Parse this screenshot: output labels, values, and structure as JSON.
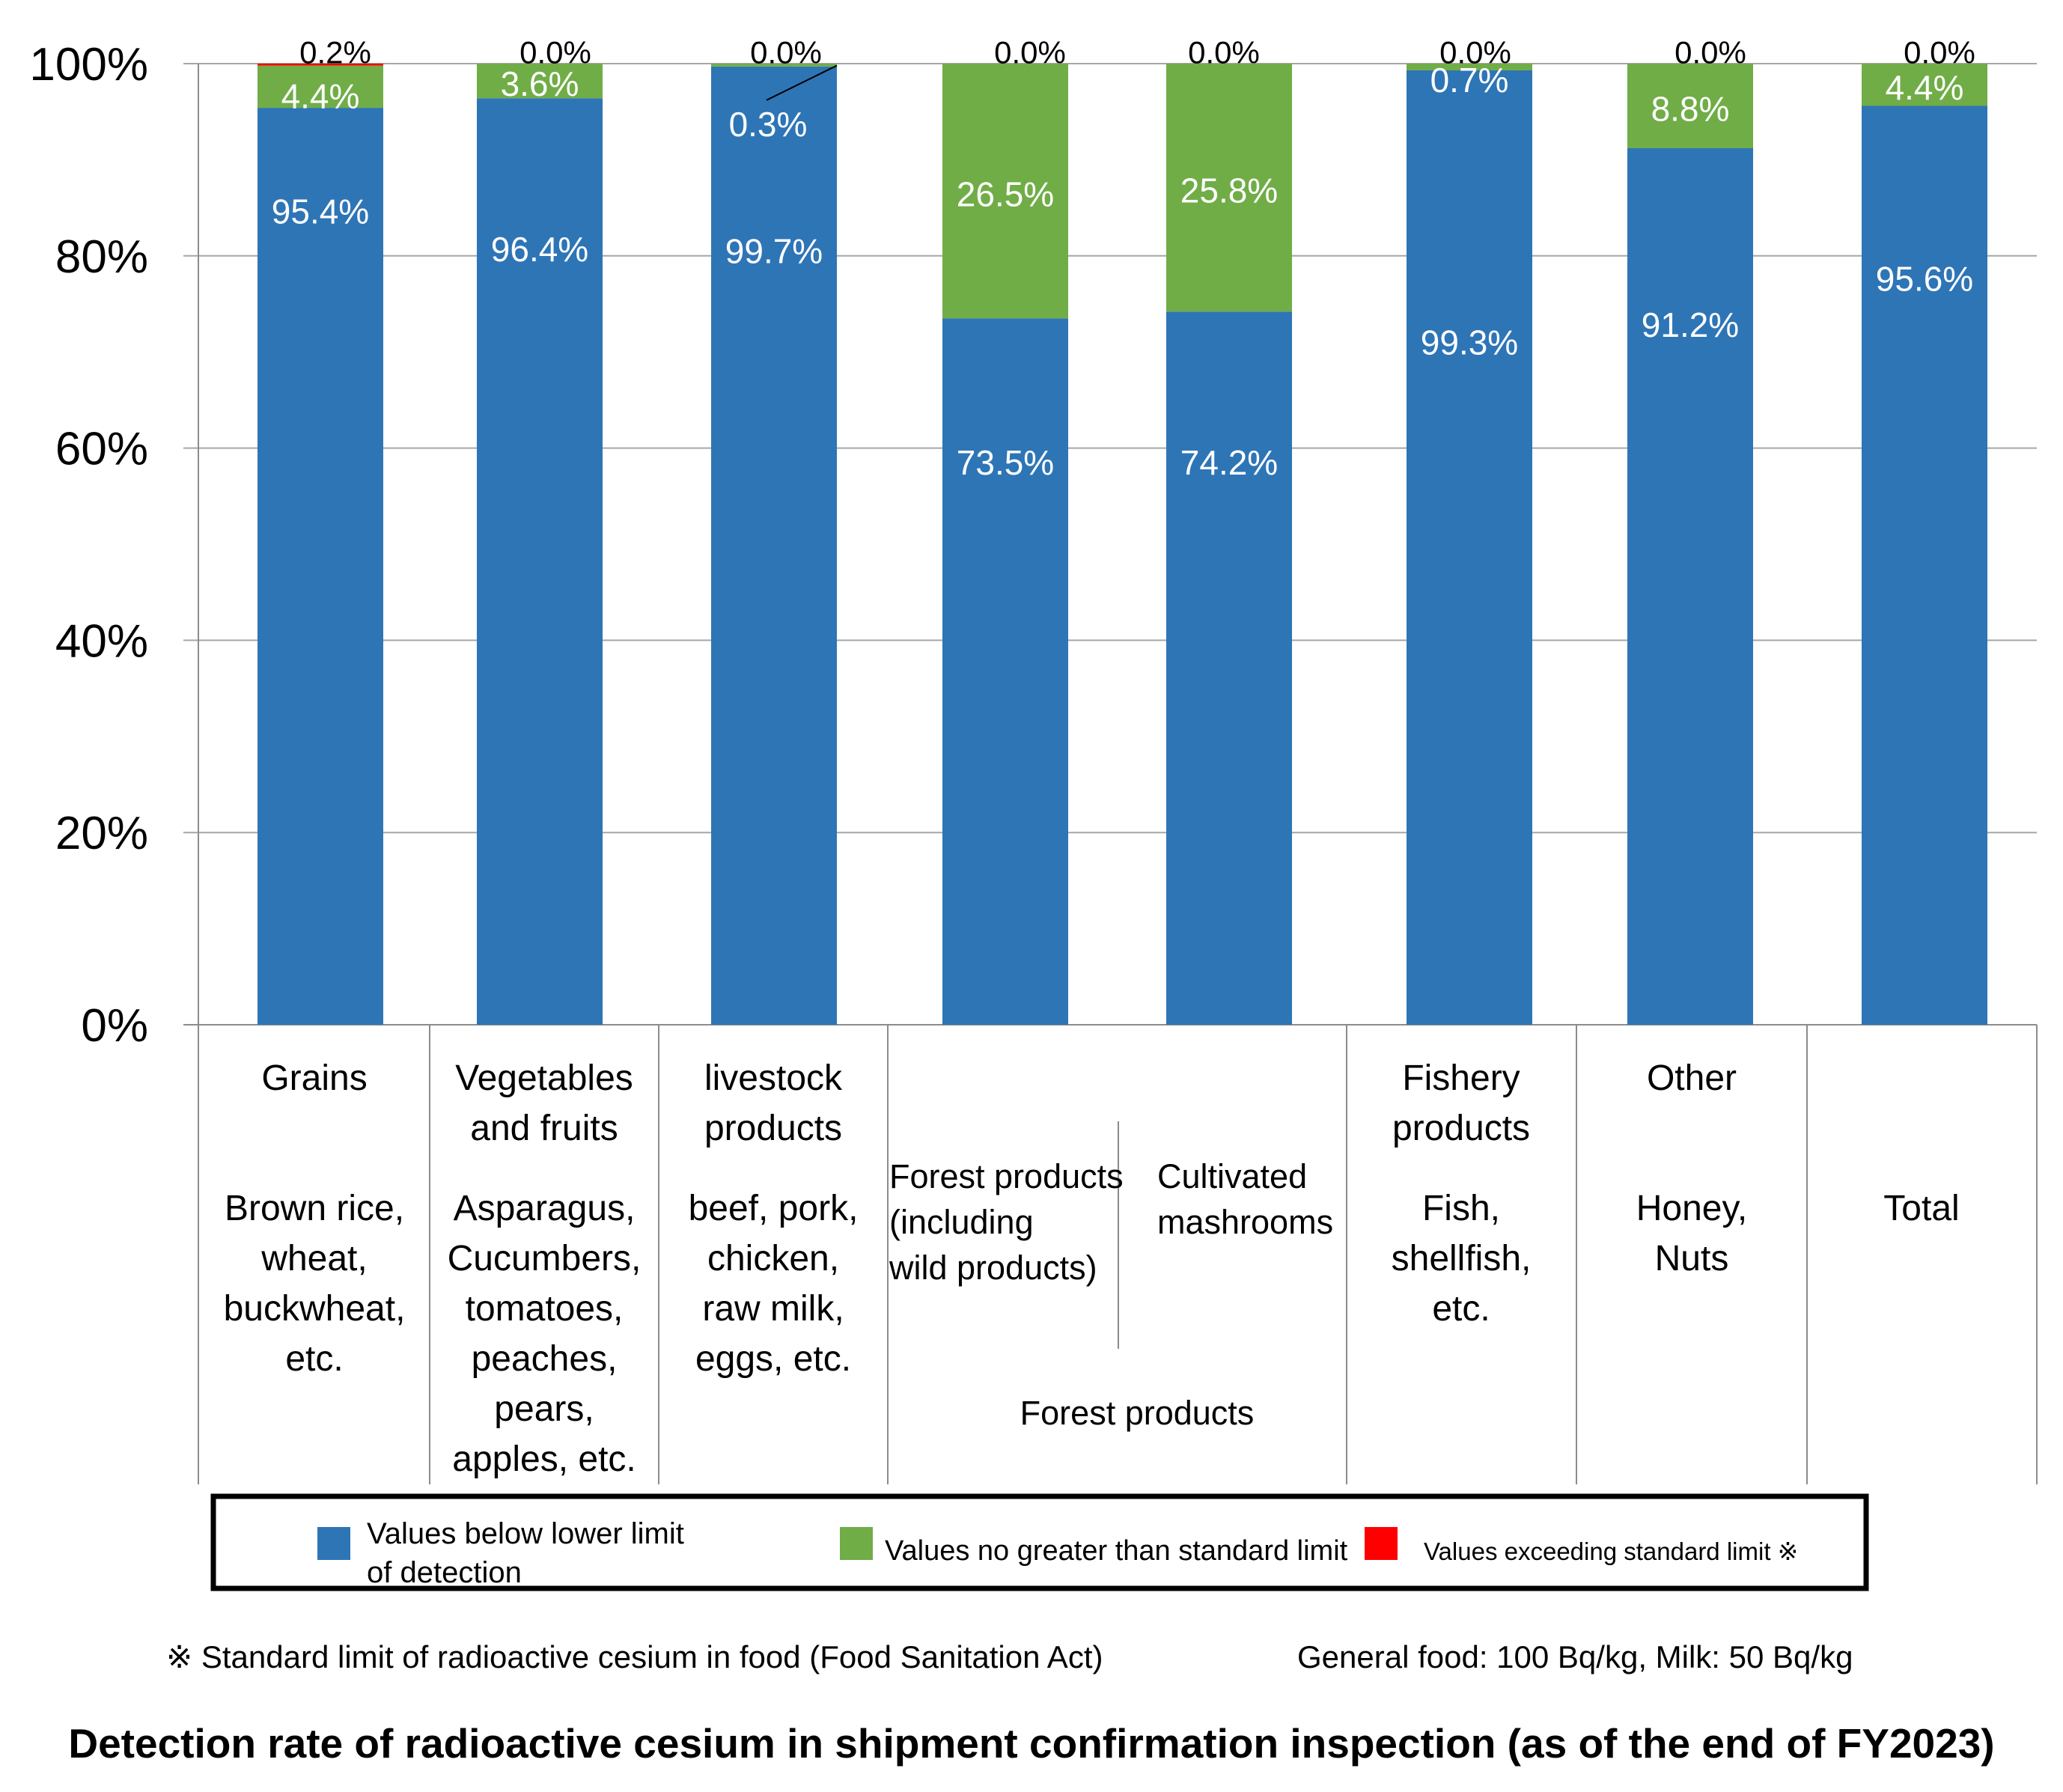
{
  "chart_data": {
    "type": "bar",
    "stacked": true,
    "title": "Detection rate of radioactive cesium in shipment confirmation inspection (as of the end of FY2023)",
    "ylim": [
      0,
      100
    ],
    "y_ticks": [
      "0%",
      "20%",
      "40%",
      "60%",
      "80%",
      "100%"
    ],
    "grid": true,
    "categories": [
      {
        "name": [
          "Grains"
        ],
        "detail": [
          "Brown rice,",
          "wheat,",
          "buckwheat,",
          "etc."
        ]
      },
      {
        "name": [
          "Vegetables",
          "and fruits"
        ],
        "detail": [
          "Asparagus,",
          "Cucumbers,",
          "tomatoes,",
          "peaches,",
          "pears,",
          "apples, etc."
        ]
      },
      {
        "name": [
          "livestock",
          "products"
        ],
        "detail": [
          "beef, pork,",
          "chicken,",
          "raw milk,",
          "eggs, etc."
        ]
      },
      {
        "name": [
          "Forest products",
          "(including",
          "wild products)"
        ],
        "detail": []
      },
      {
        "name": [
          "Cultivated",
          "mashrooms"
        ],
        "detail": []
      },
      {
        "name": [
          "Fishery",
          "products"
        ],
        "detail": [
          "Fish,",
          "shellfish,",
          "etc."
        ]
      },
      {
        "name": [
          "Other"
        ],
        "detail": [
          "Honey,",
          "Nuts"
        ]
      },
      {
        "name": [],
        "detail": [
          "Total"
        ]
      }
    ],
    "group_label": "Forest products",
    "series": [
      {
        "name": "Values below lower limit of detection",
        "name_lines": [
          "Values below lower limit",
          "of detection"
        ],
        "color": "#2E75B6",
        "values": [
          95.4,
          96.4,
          99.7,
          73.5,
          74.2,
          99.3,
          91.2,
          95.6
        ],
        "labels": [
          "95.4%",
          "96.4%",
          "99.7%",
          "73.5%",
          "74.2%",
          "99.3%",
          "91.2%",
          "95.6%"
        ]
      },
      {
        "name": "Values no greater than standard limit",
        "color": "#70AD47",
        "values": [
          4.4,
          3.6,
          0.3,
          26.5,
          25.8,
          0.7,
          8.8,
          4.4
        ],
        "labels": [
          "4.4%",
          "3.6%",
          "0.3%",
          "26.5%",
          "25.8%",
          "0.7%",
          "8.8%",
          "4.4%"
        ]
      },
      {
        "name": "Values exceeding standard limit ※",
        "color": "#FF0000",
        "values": [
          0.2,
          0.0,
          0.0,
          0.0,
          0.0,
          0.0,
          0.0,
          0.0
        ],
        "labels": [
          "0.2%",
          "0.0%",
          "0.0%",
          "0.0%",
          "0.0%",
          "0.0%",
          "0.0%",
          "0.0%"
        ]
      }
    ],
    "legend_position": "bottom",
    "footnote_left": "※ Standard limit of radioactive cesium in food (Food Sanitation Act)",
    "footnote_right": "General food: 100 Bq/kg, Milk: 50 Bq/kg"
  }
}
